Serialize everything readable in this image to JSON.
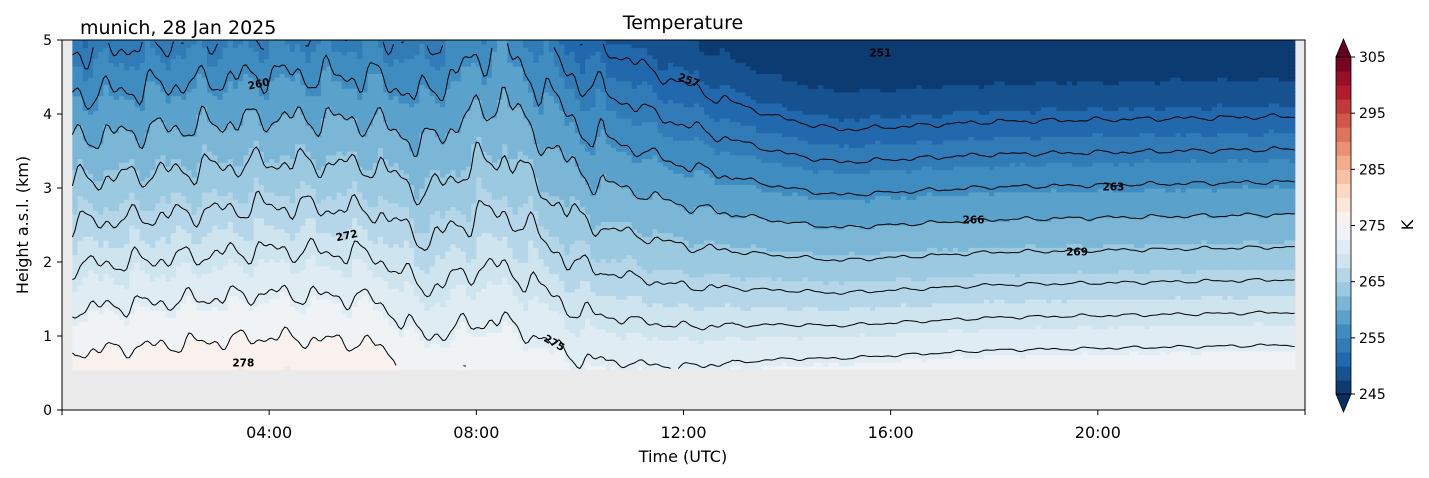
{
  "chart_data": {
    "type": "heatmap",
    "plot_kind": "filled-contour with labeled isolines",
    "title": "Temperature",
    "subtitle": "munich, 28 Jan 2025",
    "xlabel": "Time (UTC)",
    "ylabel": "Height a.s.l. (km)",
    "xlim_hours": [
      0,
      24
    ],
    "x_ticks": [
      {
        "hour": 4,
        "label": "04:00"
      },
      {
        "hour": 8,
        "label": "08:00"
      },
      {
        "hour": 12,
        "label": "12:00"
      },
      {
        "hour": 16,
        "label": "16:00"
      },
      {
        "hour": 20,
        "label": "20:00"
      }
    ],
    "ylim_km": [
      0,
      5
    ],
    "y_ticks": [
      {
        "value": 0,
        "label": "0"
      },
      {
        "value": 1,
        "label": "1"
      },
      {
        "value": 2,
        "label": "2"
      },
      {
        "value": 3,
        "label": "3"
      },
      {
        "value": 4,
        "label": "4"
      },
      {
        "value": 5,
        "label": "5"
      }
    ],
    "data_floor_km": 0.55,
    "data_start_hour": 0.2,
    "data_end_hour": 23.8,
    "colorbar": {
      "label": "K",
      "colormap": "RdBu_r",
      "range": [
        245,
        305
      ],
      "step": 2.5,
      "extend": "both",
      "ticks": [
        {
          "value": 245,
          "label": "245"
        },
        {
          "value": 255,
          "label": "255"
        },
        {
          "value": 265,
          "label": "265"
        },
        {
          "value": 275,
          "label": "275"
        },
        {
          "value": 285,
          "label": "285"
        },
        {
          "value": 295,
          "label": "295"
        },
        {
          "value": 305,
          "label": "305"
        }
      ]
    },
    "contour_levels": [
      251,
      254,
      257,
      260,
      263,
      266,
      269,
      272,
      275,
      278
    ],
    "contour_labels": [
      {
        "text": "251",
        "hour": 15.8,
        "km": 4.82,
        "angle": 0
      },
      {
        "text": "257",
        "hour": 12.1,
        "km": 4.45,
        "angle": 20
      },
      {
        "text": "260",
        "hour": 3.8,
        "km": 4.4,
        "angle": -12
      },
      {
        "text": "263",
        "hour": 20.3,
        "km": 3.01,
        "angle": 0
      },
      {
        "text": "266",
        "hour": 17.6,
        "km": 2.56,
        "angle": 0
      },
      {
        "text": "269",
        "hour": 19.6,
        "km": 2.13,
        "angle": 0
      },
      {
        "text": "272",
        "hour": 5.5,
        "km": 2.35,
        "angle": -12
      },
      {
        "text": "275",
        "hour": 9.5,
        "km": 0.9,
        "angle": 30
      },
      {
        "text": "278",
        "hour": 3.5,
        "km": 0.63,
        "angle": 0
      }
    ],
    "surface_temperature_profile": [
      {
        "hour": 0,
        "t0": 279.0
      },
      {
        "hour": 4,
        "t0": 280.0
      },
      {
        "hour": 6,
        "t0": 279.5
      },
      {
        "hour": 7,
        "t0": 276.5
      },
      {
        "hour": 8,
        "t0": 277.0
      },
      {
        "hour": 9,
        "t0": 276.5
      },
      {
        "hour": 10,
        "t0": 275.3
      },
      {
        "hour": 12,
        "t0": 275.2
      },
      {
        "hour": 14,
        "t0": 276.5
      },
      {
        "hour": 18,
        "t0": 277.5
      },
      {
        "hour": 24,
        "t0": 278.0
      }
    ],
    "lapse_rate_profile": [
      {
        "hour": 0,
        "k_per_km": 5.2
      },
      {
        "hour": 6,
        "k_per_km": 5.0
      },
      {
        "hour": 8.5,
        "k_per_km": 4.0
      },
      {
        "hour": 10,
        "k_per_km": 4.8
      },
      {
        "hour": 12,
        "k_per_km": 5.5
      },
      {
        "hour": 14,
        "k_per_km": 6.5
      },
      {
        "hour": 15,
        "k_per_km": 6.8
      },
      {
        "hour": 24,
        "k_per_km": 6.8
      }
    ]
  }
}
